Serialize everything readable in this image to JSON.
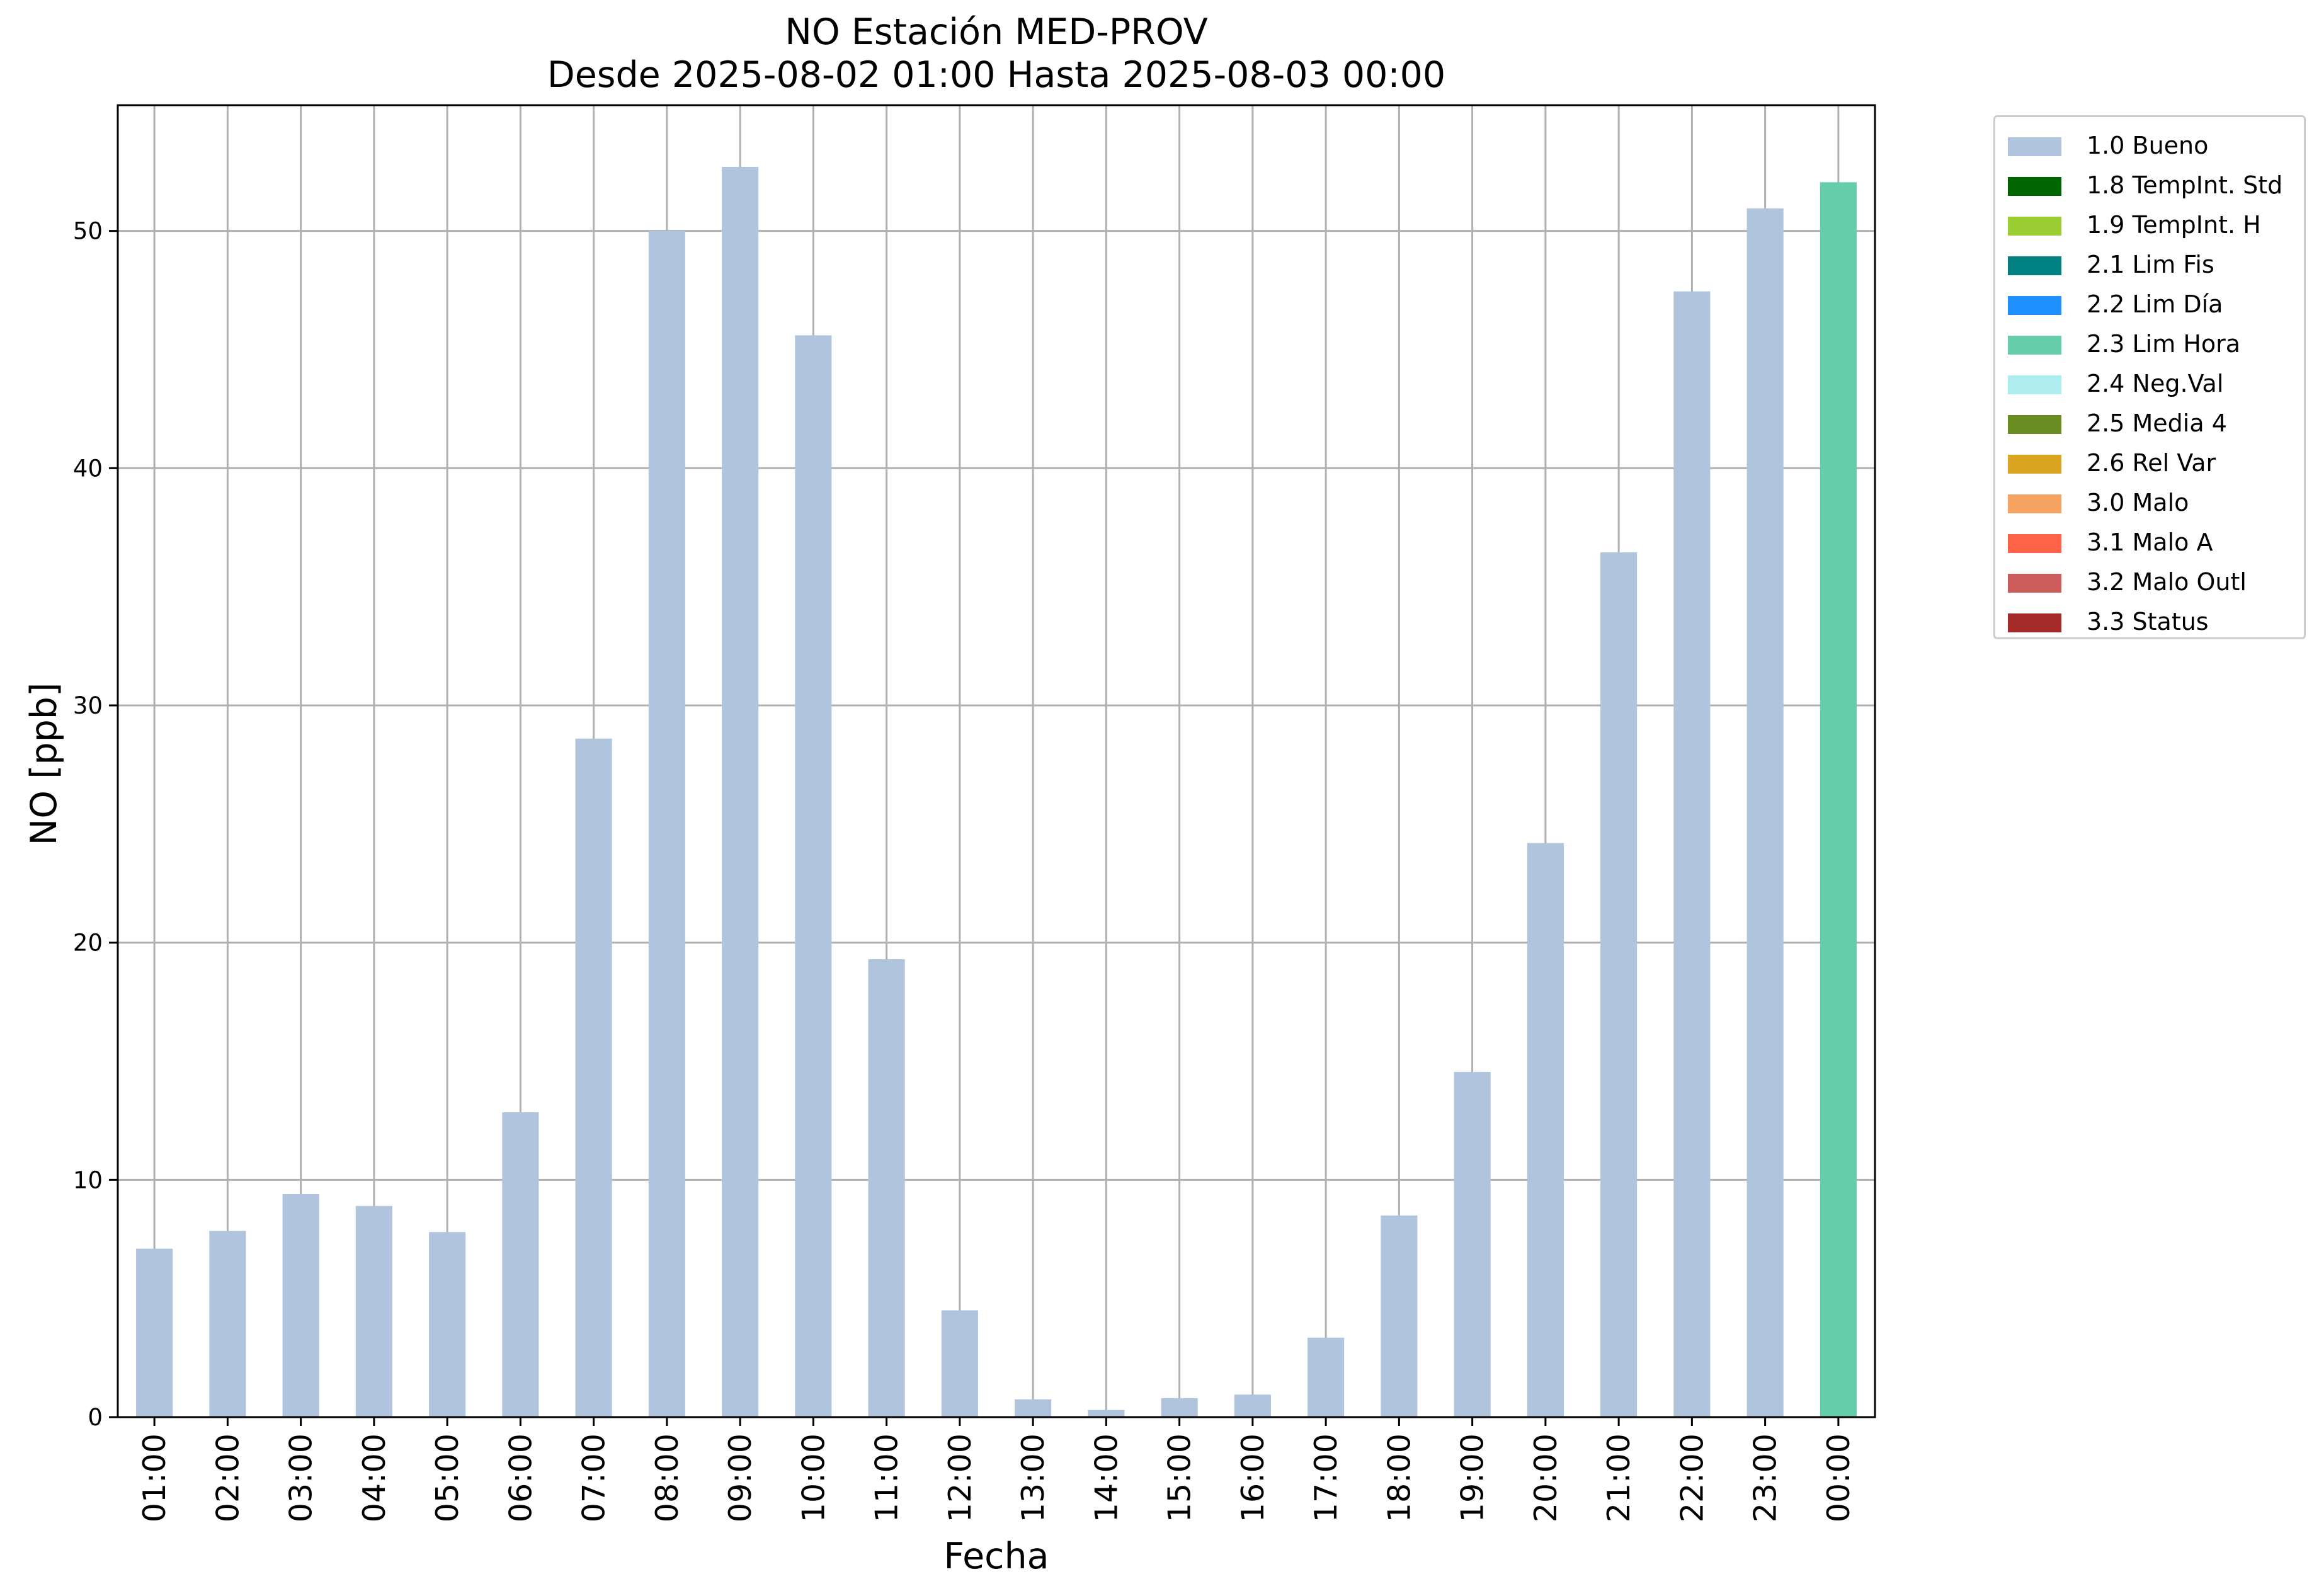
{
  "chart_data": {
    "type": "bar",
    "title": "NO Estación MED-PROV",
    "subtitle": "Desde 2025-08-02 01:00 Hasta 2025-08-03 00:00",
    "xlabel": "Fecha",
    "ylabel": "NO [ppb]",
    "ylim": [
      0,
      55.3
    ],
    "yticks": [
      0,
      10,
      20,
      30,
      40,
      50
    ],
    "grid": true,
    "legend_position": "outside-top-right",
    "categories": [
      "01:00",
      "02:00",
      "03:00",
      "04:00",
      "05:00",
      "06:00",
      "07:00",
      "08:00",
      "09:00",
      "10:00",
      "11:00",
      "12:00",
      "13:00",
      "14:00",
      "15:00",
      "16:00",
      "17:00",
      "18:00",
      "19:00",
      "20:00",
      "21:00",
      "22:00",
      "23:00",
      "00:00"
    ],
    "values": [
      7.1,
      7.85,
      9.4,
      8.9,
      7.8,
      12.85,
      28.6,
      50.0,
      52.7,
      45.6,
      19.3,
      4.5,
      0.75,
      0.3,
      0.8,
      0.95,
      3.35,
      8.5,
      14.55,
      24.2,
      36.45,
      47.45,
      50.95,
      52.05
    ],
    "bar_flags": [
      "1.0 Bueno",
      "1.0 Bueno",
      "1.0 Bueno",
      "1.0 Bueno",
      "1.0 Bueno",
      "1.0 Bueno",
      "1.0 Bueno",
      "1.0 Bueno",
      "1.0 Bueno",
      "1.0 Bueno",
      "1.0 Bueno",
      "1.0 Bueno",
      "1.0 Bueno",
      "1.0 Bueno",
      "1.0 Bueno",
      "1.0 Bueno",
      "1.0 Bueno",
      "1.0 Bueno",
      "1.0 Bueno",
      "1.0 Bueno",
      "1.0 Bueno",
      "1.0 Bueno",
      "1.0 Bueno",
      "2.3 Lim Hora"
    ],
    "legend": [
      {
        "label": "1.0 Bueno",
        "color": "#b0c4de"
      },
      {
        "label": "1.8 TempInt. Std",
        "color": "#006400"
      },
      {
        "label": "1.9 TempInt. H",
        "color": "#9acd32"
      },
      {
        "label": "2.1 Lim Fis",
        "color": "#008080"
      },
      {
        "label": "2.2 Lim Día",
        "color": "#1e90ff"
      },
      {
        "label": "2.3 Lim Hora",
        "color": "#66cdaa"
      },
      {
        "label": "2.4 Neg.Val",
        "color": "#afeeee"
      },
      {
        "label": "2.5 Media 4",
        "color": "#6b8e23"
      },
      {
        "label": "2.6 Rel Var",
        "color": "#daa520"
      },
      {
        "label": "3.0 Malo",
        "color": "#f4a460"
      },
      {
        "label": "3.1 Malo A",
        "color": "#ff6347"
      },
      {
        "label": "3.2 Malo Outl",
        "color": "#cd5c5c"
      },
      {
        "label": "3.3 Status",
        "color": "#a52a2a"
      }
    ]
  }
}
